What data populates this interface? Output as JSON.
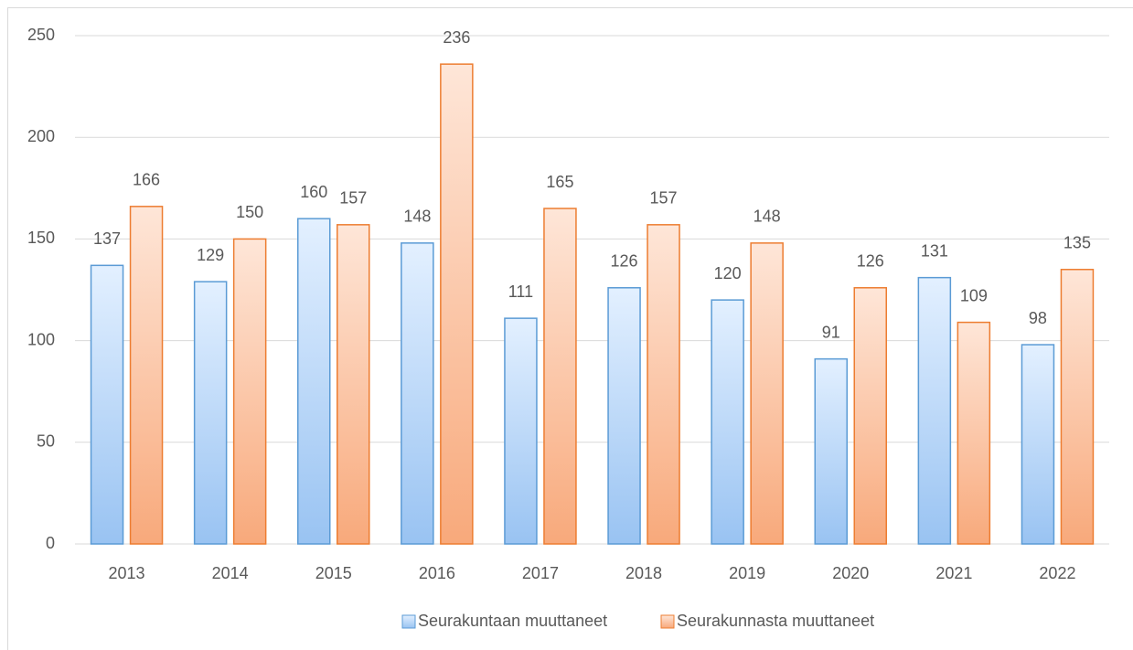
{
  "chart_data": {
    "type": "bar",
    "categories": [
      "2013",
      "2014",
      "2015",
      "2016",
      "2017",
      "2018",
      "2019",
      "2020",
      "2021",
      "2022"
    ],
    "series": [
      {
        "name": "Seurakuntaan muuttaneet",
        "color": "#5b9bd5",
        "values": [
          137,
          129,
          160,
          148,
          111,
          126,
          120,
          91,
          131,
          98
        ]
      },
      {
        "name": "Seurakunnasta muuttaneet",
        "color": "#ed7d31",
        "values": [
          166,
          150,
          157,
          236,
          165,
          157,
          148,
          126,
          109,
          135
        ]
      }
    ],
    "ylim": [
      0,
      250
    ],
    "yticks": [
      0,
      50,
      100,
      150,
      200,
      250
    ],
    "grid": true,
    "legend": "bottom"
  }
}
